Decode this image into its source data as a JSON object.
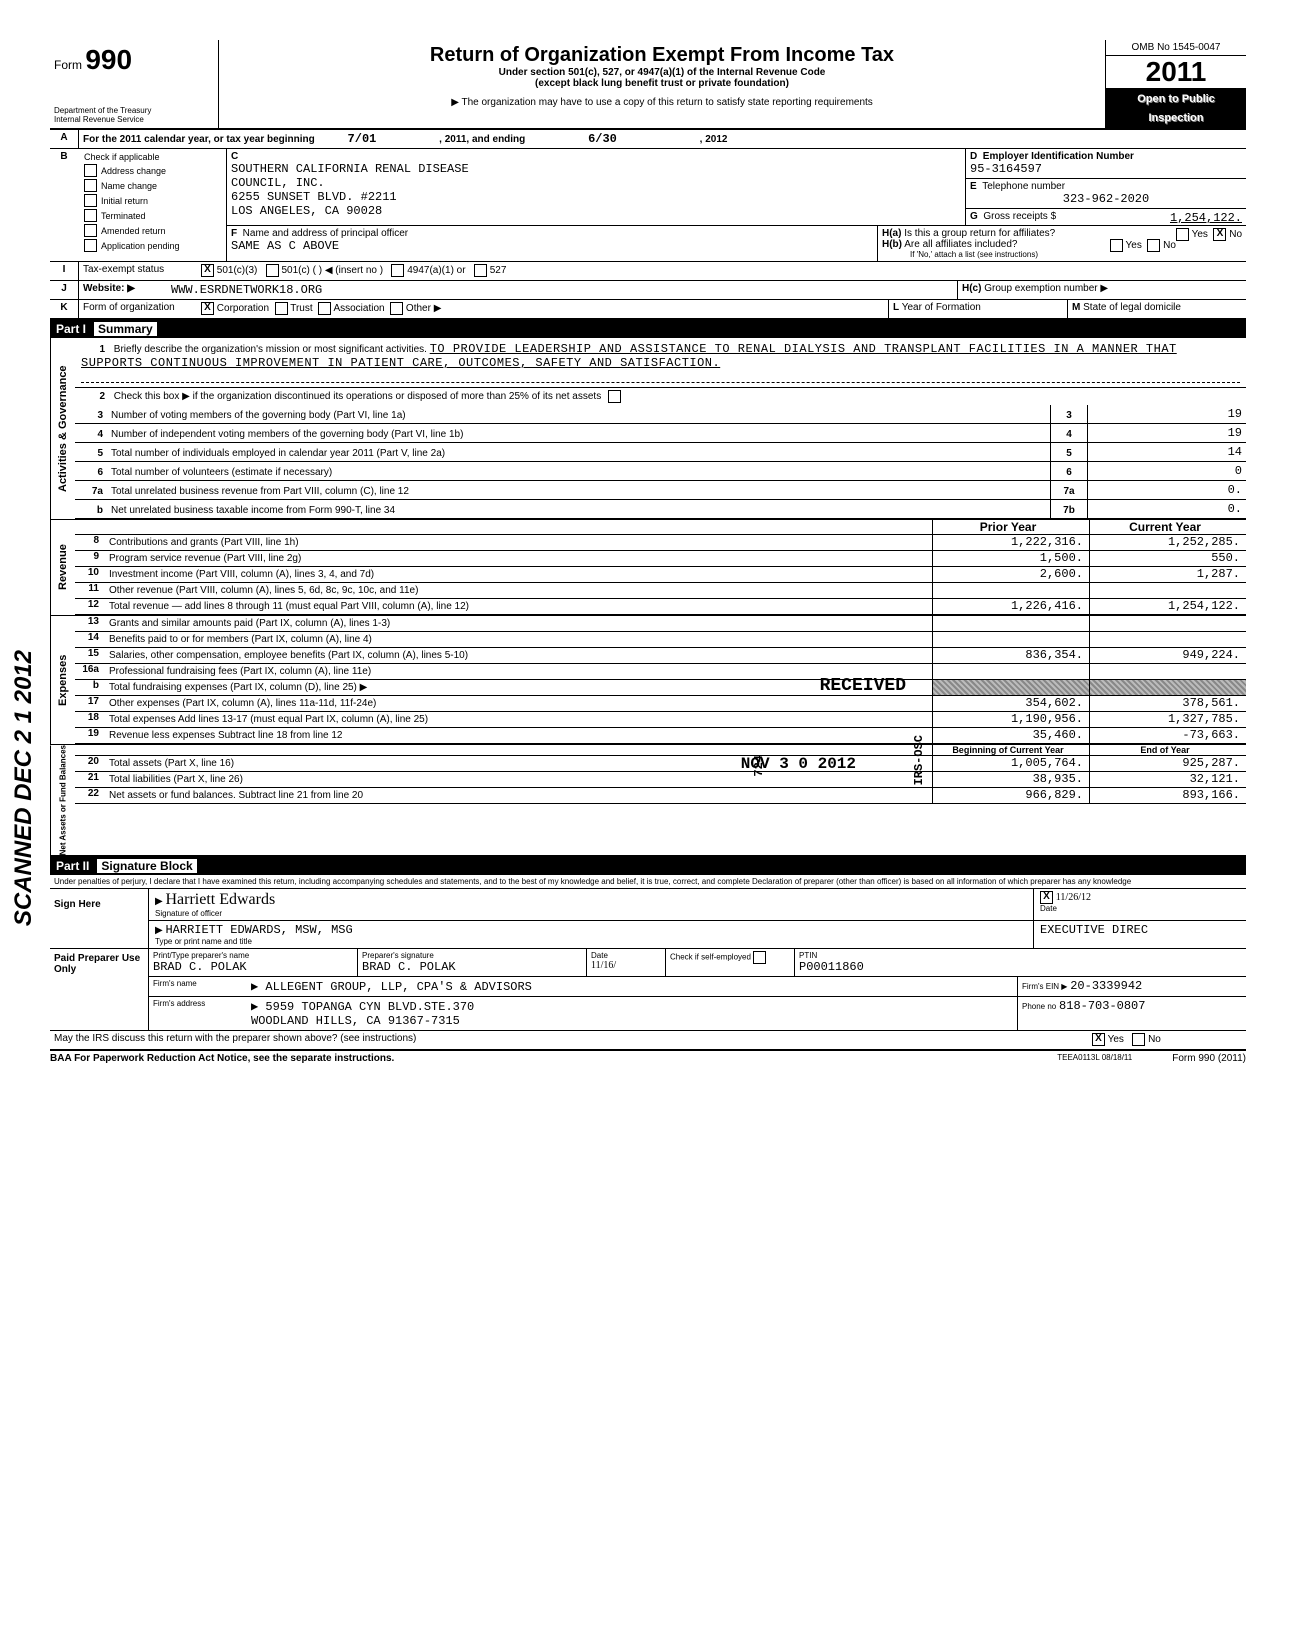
{
  "header": {
    "form_prefix": "Form",
    "form_number": "990",
    "dept": "Department of the Treasury",
    "irs": "Internal Revenue Service",
    "title": "Return of Organization Exempt From Income Tax",
    "subtitle1": "Under section 501(c), 527, or 4947(a)(1) of the Internal Revenue Code",
    "subtitle2": "(except black lung benefit trust or private foundation)",
    "note": "▶ The organization may have to use a copy of this return to satisfy state reporting requirements",
    "omb": "OMB No 1545-0047",
    "year": "2011",
    "open1": "Open to Public",
    "open2": "Inspection"
  },
  "line_a": {
    "label": "For the 2011 calendar year, or tax year beginning",
    "begin": "7/01",
    "mid": ", 2011, and ending",
    "end": "6/30",
    "end_year": ", 2012"
  },
  "section_b": {
    "label": "Check if applicable",
    "opts": [
      "Address change",
      "Name change",
      "Initial return",
      "Terminated",
      "Amended return",
      "Application pending"
    ]
  },
  "section_c": {
    "name1": "SOUTHERN CALIFORNIA RENAL DISEASE",
    "name2": "COUNCIL, INC.",
    "addr1": "6255 SUNSET BLVD. #2211",
    "addr2": "LOS ANGELES, CA 90028"
  },
  "section_d": {
    "label": "Employer Identification Number",
    "value": "95-3164597"
  },
  "section_e": {
    "label": "Telephone number",
    "value": "323-962-2020"
  },
  "section_g": {
    "label": "Gross receipts $",
    "value": "1,254,122."
  },
  "section_f": {
    "label": "Name and address of principal officer",
    "value": "SAME AS C ABOVE"
  },
  "section_h": {
    "ha": "Is this a group return for affiliates?",
    "hb": "Are all affiliates included?",
    "hb_note": "If 'No,' attach a list (see instructions)",
    "hc": "Group exemption number ▶"
  },
  "line_i": {
    "label": "Tax-exempt status",
    "c3": "501(c)(3)",
    "c": "501(c) (",
    "insert": ") ◀  (insert no )",
    "a1": "4947(a)(1) or",
    "s527": "527"
  },
  "line_j": {
    "label": "Website: ▶",
    "value": "WWW.ESRDNETWORK18.ORG"
  },
  "line_k": {
    "label": "Form of organization",
    "corp": "Corporation",
    "trust": "Trust",
    "assoc": "Association",
    "other": "Other ▶",
    "yof": "Year of Formation",
    "state": "State of legal domicile"
  },
  "part1": {
    "header": "Part I",
    "title": "Summary",
    "mission_label": "Briefly describe the organization's mission or most significant activities.",
    "mission": "TO PROVIDE LEADERSHIP AND ASSISTANCE TO RENAL DIALYSIS AND TRANSPLANT FACILITIES IN A MANNER THAT SUPPORTS CONTINUOUS IMPROVEMENT IN PATIENT CARE, OUTCOMES, SAFETY AND SATISFACTION.",
    "line2": "Check this box ▶       if the organization discontinued its operations or disposed of more than 25% of its net assets",
    "lines_gov": [
      {
        "n": "3",
        "d": "Number of voting members of the governing body (Part VI, line 1a)",
        "box": "3",
        "v": "19"
      },
      {
        "n": "4",
        "d": "Number of independent voting members of the governing body (Part VI, line 1b)",
        "box": "4",
        "v": "19"
      },
      {
        "n": "5",
        "d": "Total number of individuals employed in calendar year 2011 (Part V, line 2a)",
        "box": "5",
        "v": "14"
      },
      {
        "n": "6",
        "d": "Total number of volunteers (estimate if necessary)",
        "box": "6",
        "v": "0"
      },
      {
        "n": "7a",
        "d": "Total unrelated business revenue from Part VIII, column (C), line 12",
        "box": "7a",
        "v": "0."
      },
      {
        "n": "b",
        "d": "Net unrelated business taxable income from Form 990-T, line 34",
        "box": "7b",
        "v": "0."
      }
    ],
    "py_header": "Prior Year",
    "cy_header": "Current Year",
    "revenue": [
      {
        "n": "8",
        "d": "Contributions and grants (Part VIII, line 1h)",
        "py": "1,222,316.",
        "cy": "1,252,285."
      },
      {
        "n": "9",
        "d": "Program service revenue (Part VIII, line 2g)",
        "py": "1,500.",
        "cy": "550."
      },
      {
        "n": "10",
        "d": "Investment income (Part VIII, column (A), lines 3, 4, and 7d)",
        "py": "2,600.",
        "cy": "1,287."
      },
      {
        "n": "11",
        "d": "Other revenue (Part VIII, column (A), lines 5, 6d, 8c, 9c, 10c, and 11e)",
        "py": "",
        "cy": ""
      },
      {
        "n": "12",
        "d": "Total revenue — add lines 8 through 11 (must equal Part VIII, column (A), line 12)",
        "py": "1,226,416.",
        "cy": "1,254,122."
      }
    ],
    "expenses": [
      {
        "n": "13",
        "d": "Grants and similar amounts paid (Part IX, column (A), lines 1-3)",
        "py": "",
        "cy": ""
      },
      {
        "n": "14",
        "d": "Benefits paid to or for members (Part IX, column (A), line 4)",
        "py": "",
        "cy": ""
      },
      {
        "n": "15",
        "d": "Salaries, other compensation, employee benefits (Part IX, column (A), lines 5-10)",
        "py": "836,354.",
        "cy": "949,224."
      },
      {
        "n": "16a",
        "d": "Professional fundraising fees (Part IX, column (A), line 11e)",
        "py": "",
        "cy": ""
      },
      {
        "n": "b",
        "d": "Total fundraising expenses (Part IX, column (D), line 25) ▶",
        "py": "SHADED",
        "cy": "SHADED"
      },
      {
        "n": "17",
        "d": "Other expenses (Part IX, column (A), lines 11a-11d, 11f-24e)",
        "py": "354,602.",
        "cy": "378,561."
      },
      {
        "n": "18",
        "d": "Total expenses  Add lines 13-17 (must equal Part IX, column (A), line 25)",
        "py": "1,190,956.",
        "cy": "1,327,785."
      },
      {
        "n": "19",
        "d": "Revenue less expenses  Subtract line 18 from line 12",
        "py": "35,460.",
        "cy": "-73,663."
      }
    ],
    "boy_header": "Beginning of Current Year",
    "eoy_header": "End of Year",
    "netassets": [
      {
        "n": "20",
        "d": "Total assets (Part X, line 16)",
        "py": "1,005,764.",
        "cy": "925,287."
      },
      {
        "n": "21",
        "d": "Total liabilities (Part X, line 26)",
        "py": "38,935.",
        "cy": "32,121."
      },
      {
        "n": "22",
        "d": "Net assets or fund balances. Subtract line 21 from line 20",
        "py": "966,829.",
        "cy": "893,166."
      }
    ]
  },
  "part2": {
    "header": "Part II",
    "title": "Signature Block",
    "perjury": "Under penalties of perjury, I declare that I have examined this return, including accompanying schedules and statements, and to the best of my knowledge and belief, it is true, correct, and complete  Declaration of preparer (other than officer) is based on all information of which preparer has any knowledge",
    "sign_here": "Sign Here",
    "sig_officer": "Signature of officer",
    "sig_date": "Date",
    "officer_name": "HARRIETT EDWARDS, MSW, MSG",
    "officer_title": "EXECUTIVE DIREC",
    "type_name": "Type or print name and title",
    "sig_date_val": "11/26/12",
    "paid": "Paid Preparer Use Only",
    "prep_name_label": "Print/Type preparer's name",
    "prep_name": "BRAD C. POLAK",
    "prep_sig_label": "Preparer's signature",
    "prep_sig": "BRAD C. POLAK",
    "prep_date": "11/16/",
    "check_self": "Check          if self-employed",
    "ptin_label": "PTIN",
    "ptin": "P00011860",
    "firm_name_label": "Firm's name",
    "firm_name": "▶ ALLEGENT GROUP, LLP, CPA'S & ADVISORS",
    "firm_addr_label": "Firm's address",
    "firm_addr1": "▶ 5959 TOPANGA CYN BLVD.STE.370",
    "firm_addr2": "WOODLAND HILLS, CA 91367-7315",
    "firm_ein_label": "Firm's EIN ▶",
    "firm_ein": "20-3339942",
    "phone_label": "Phone no",
    "phone": "818-703-0807",
    "discuss": "May the IRS discuss this return with the preparer shown above? (see instructions)",
    "yes": "Yes",
    "no": "No"
  },
  "footer": {
    "baa": "BAA  For Paperwork Reduction Act Notice, see the separate instructions.",
    "teea": "TEEA0113L  08/18/11",
    "form": "Form 990 (2011)"
  },
  "stamps": {
    "received": "RECEIVED",
    "date": "NOV 3 0 2012",
    "ogden": "OGDEN, UT",
    "irs_osc": "IRS-OSC",
    "n724": "724",
    "scanned": "SCANNED DEC 2 1 2012"
  },
  "vlabels": {
    "gov": "Activities & Governance",
    "rev": "Revenue",
    "exp": "Expenses",
    "net": "Net Assets or Fund Balances"
  }
}
